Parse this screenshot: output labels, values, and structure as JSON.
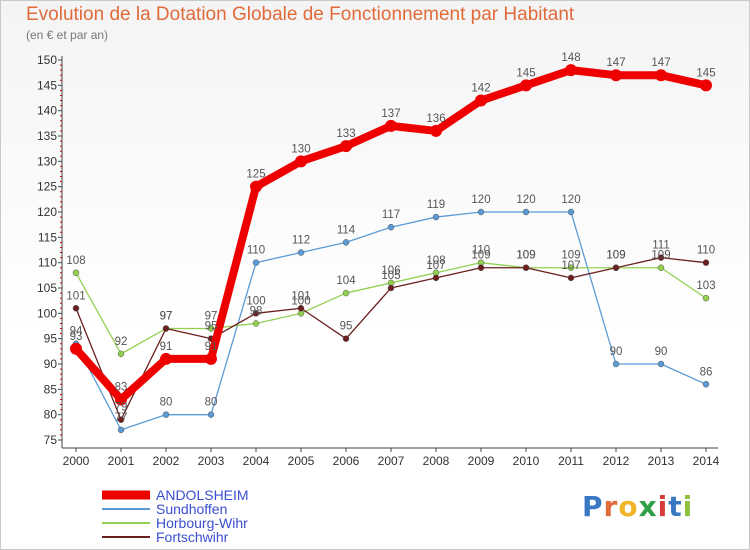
{
  "title": "Evolution de la Dotation Globale de Fonctionnement par Habitant",
  "subtitle": "(en € et par an)",
  "logo": {
    "text": "Proxiti",
    "letter_colors": [
      "#3a78c4",
      "#e06a3a",
      "#f0b428",
      "#2f9f48",
      "#d63c3c",
      "#3a78c4",
      "#8fbf3f"
    ]
  },
  "chart_data": {
    "type": "line",
    "title": "Evolution de la Dotation Globale de Fonctionnement par Habitant",
    "subtitle": "(en € et par an)",
    "x": [
      "2000",
      "2001",
      "2002",
      "2003",
      "2004",
      "2005",
      "2006",
      "2007",
      "2008",
      "2009",
      "2010",
      "2011",
      "2012",
      "2013",
      "2014"
    ],
    "ylim": [
      75,
      150
    ],
    "yticks": [
      75,
      80,
      85,
      90,
      95,
      100,
      105,
      110,
      115,
      120,
      125,
      130,
      135,
      140,
      145,
      150
    ],
    "grid": false,
    "legend_position": "bottom-left",
    "series": [
      {
        "name": "ANDOLSHEIM",
        "color": "#ee0000",
        "values": [
          93,
          83,
          91,
          91,
          125,
          130,
          133,
          137,
          136,
          142,
          145,
          148,
          147,
          147,
          145
        ],
        "labels": [
          "93",
          "83",
          "91",
          "91",
          "125",
          "130",
          "133",
          "137",
          "136",
          "142",
          "145",
          "148",
          "147",
          "147",
          "145"
        ]
      },
      {
        "name": "Sundhoffen",
        "color": "#5b9bd5",
        "values": [
          94,
          77,
          80,
          80,
          110,
          112,
          114,
          117,
          119,
          120,
          120,
          120,
          90,
          90,
          86
        ],
        "labels": [
          "94",
          "77",
          "80",
          "80",
          "110",
          "112",
          "114",
          "117",
          "119",
          "120",
          "120",
          "120",
          "90",
          "90",
          "86"
        ]
      },
      {
        "name": "Horbourg-Wihr",
        "color": "#92d050",
        "values": [
          108,
          92,
          97,
          97,
          98,
          100,
          104,
          106,
          108,
          110,
          109,
          109,
          109,
          109,
          103
        ],
        "labels": [
          "108",
          "92",
          "97",
          "97",
          "98",
          "100",
          "104",
          "106",
          "108",
          "110",
          "109",
          "109",
          "109",
          "109",
          "103"
        ]
      },
      {
        "name": "Fortschwihr",
        "color": "#6b1f1f",
        "values": [
          101,
          79,
          97,
          95,
          100,
          101,
          95,
          105,
          107,
          109,
          109,
          107,
          109,
          111,
          110
        ],
        "labels": [
          "101",
          "79",
          "97",
          "95",
          "100",
          "101",
          "95",
          "105",
          "107",
          "109",
          "109",
          "107",
          "109",
          "111",
          "110"
        ]
      }
    ]
  }
}
